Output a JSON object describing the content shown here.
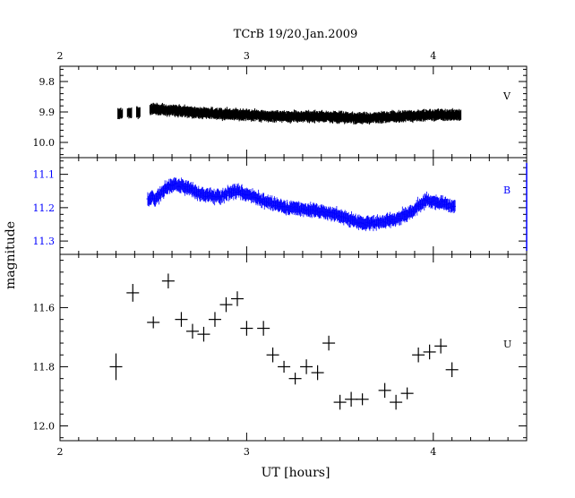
{
  "chart_data": {
    "type": "scatter",
    "title": "TCrB  19/20.Jan.2009",
    "xlabel": "UT [hours]",
    "ylabel": "magnitude",
    "xlim": [
      2.0,
      4.5
    ],
    "x_ticks": [
      2,
      3,
      4
    ],
    "x_tick_labels": [
      "2",
      "3",
      "4"
    ],
    "panels": [
      {
        "name": "V",
        "color": "#000000",
        "ylim": [
          10.05,
          9.75
        ],
        "y_ticks": [
          9.8,
          9.9,
          10.0
        ],
        "y_tick_labels": [
          "9.8",
          "9.9",
          "10.0"
        ],
        "style": "dense-errorbars",
        "x_start": 2.31,
        "x_end": 4.15,
        "gap": [
          2.43,
          2.48
        ],
        "trend": [
          [
            2.31,
            9.905
          ],
          [
            2.45,
            9.9
          ],
          [
            2.5,
            9.89
          ],
          [
            2.6,
            9.895
          ],
          [
            2.8,
            9.905
          ],
          [
            3.0,
            9.91
          ],
          [
            3.2,
            9.915
          ],
          [
            3.4,
            9.915
          ],
          [
            3.6,
            9.92
          ],
          [
            3.8,
            9.915
          ],
          [
            4.0,
            9.91
          ],
          [
            4.15,
            9.91
          ]
        ]
      },
      {
        "name": "B",
        "color": "#0000ff",
        "ylim": [
          11.34,
          11.05
        ],
        "y_ticks": [
          11.1,
          11.2,
          11.3
        ],
        "y_tick_labels": [
          "11.1",
          "11.2",
          "11.3"
        ],
        "style": "dense-errorbars",
        "x_start": 2.47,
        "x_end": 4.12,
        "trend": [
          [
            2.47,
            11.175
          ],
          [
            2.52,
            11.17
          ],
          [
            2.57,
            11.14
          ],
          [
            2.62,
            11.13
          ],
          [
            2.68,
            11.14
          ],
          [
            2.75,
            11.16
          ],
          [
            2.85,
            11.17
          ],
          [
            2.9,
            11.155
          ],
          [
            2.95,
            11.15
          ],
          [
            3.0,
            11.16
          ],
          [
            3.1,
            11.18
          ],
          [
            3.2,
            11.2
          ],
          [
            3.3,
            11.205
          ],
          [
            3.4,
            11.21
          ],
          [
            3.5,
            11.225
          ],
          [
            3.6,
            11.245
          ],
          [
            3.7,
            11.245
          ],
          [
            3.8,
            11.235
          ],
          [
            3.88,
            11.215
          ],
          [
            3.95,
            11.18
          ],
          [
            4.05,
            11.185
          ],
          [
            4.12,
            11.2
          ]
        ]
      },
      {
        "name": "U",
        "color": "#000000",
        "ylim": [
          12.05,
          11.42
        ],
        "y_ticks": [
          11.6,
          11.8,
          12.0
        ],
        "y_tick_labels": [
          "11.6",
          "11.8",
          "12.0"
        ],
        "style": "crosses",
        "points": [
          [
            2.3,
            11.8,
            0.045
          ],
          [
            2.39,
            11.55,
            0.03
          ],
          [
            2.5,
            11.65,
            0.02
          ],
          [
            2.58,
            11.51,
            0.025
          ],
          [
            2.65,
            11.64,
            0.025
          ],
          [
            2.71,
            11.68,
            0.025
          ],
          [
            2.77,
            11.69,
            0.025
          ],
          [
            2.83,
            11.64,
            0.025
          ],
          [
            2.89,
            11.59,
            0.025
          ],
          [
            2.95,
            11.57,
            0.025
          ],
          [
            3.0,
            11.67,
            0.025
          ],
          [
            3.09,
            11.67,
            0.025
          ],
          [
            3.14,
            11.76,
            0.025
          ],
          [
            3.2,
            11.8,
            0.02
          ],
          [
            3.26,
            11.84,
            0.02
          ],
          [
            3.32,
            11.8,
            0.025
          ],
          [
            3.38,
            11.82,
            0.025
          ],
          [
            3.44,
            11.72,
            0.025
          ],
          [
            3.5,
            11.92,
            0.025
          ],
          [
            3.56,
            11.91,
            0.025
          ],
          [
            3.62,
            11.91,
            0.02
          ],
          [
            3.74,
            11.88,
            0.025
          ],
          [
            3.8,
            11.92,
            0.025
          ],
          [
            3.86,
            11.89,
            0.02
          ],
          [
            3.92,
            11.76,
            0.025
          ],
          [
            3.98,
            11.75,
            0.025
          ],
          [
            4.04,
            11.73,
            0.025
          ],
          [
            4.1,
            11.81,
            0.025
          ]
        ]
      }
    ]
  }
}
